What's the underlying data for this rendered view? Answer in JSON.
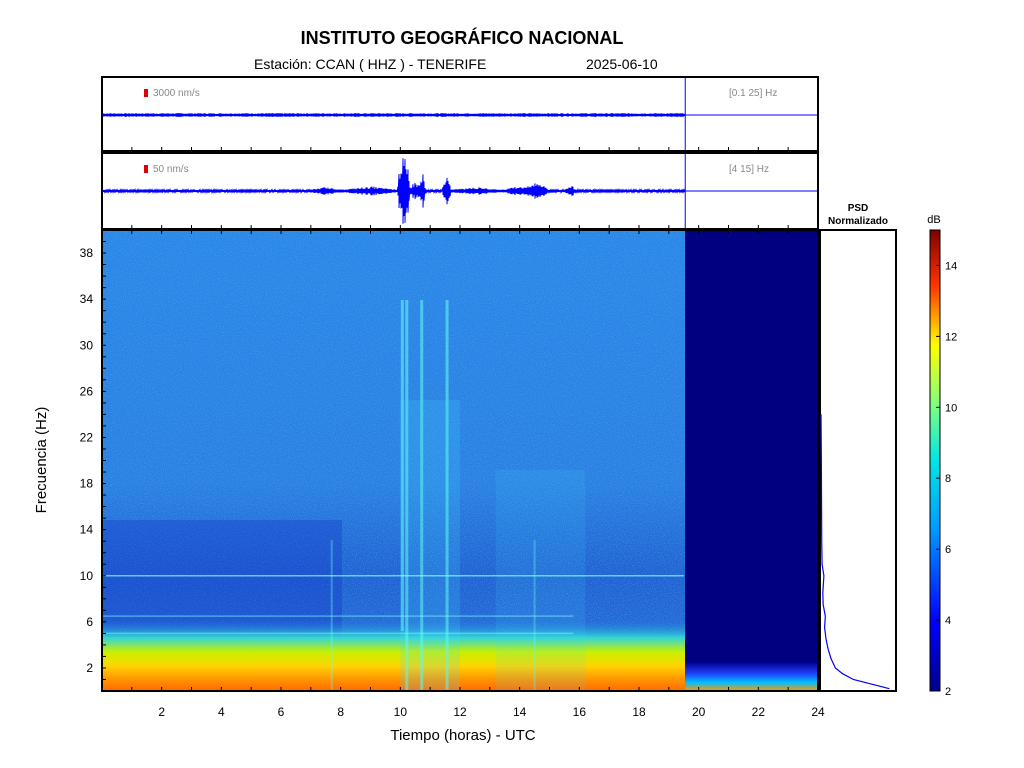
{
  "header": {
    "title": "INSTITUTO GEOGRÁFICO NACIONAL",
    "station": "Estación:  CCAN ( HHZ ) - TENERIFE",
    "date": "2025-06-10"
  },
  "chart_data": [
    {
      "type": "line",
      "name": "seismogram-broadband",
      "scale_label": "3000 nm/s",
      "band_label": "[0.1 25] Hz",
      "x_range_hours": [
        0,
        24
      ],
      "data_end_hour": 19.55
    },
    {
      "type": "line",
      "name": "seismogram-filtered",
      "scale_label": "50 nm/s",
      "band_label": "[4 15] Hz",
      "x_range_hours": [
        0,
        24
      ],
      "data_end_hour": 19.55,
      "events_hours": [
        10.05,
        10.2,
        10.7,
        11.55,
        14.5,
        15.7
      ]
    },
    {
      "type": "heatmap",
      "name": "spectrogram",
      "xlabel": "Tiempo (horas) - UTC",
      "ylabel": "Frecuencia  (Hz)",
      "xlim": [
        0,
        24
      ],
      "ylim": [
        0,
        40
      ],
      "x_ticks": [
        2,
        4,
        6,
        8,
        10,
        12,
        14,
        16,
        18,
        20,
        22,
        24
      ],
      "y_ticks": [
        2,
        6,
        10,
        14,
        18,
        22,
        26,
        30,
        34,
        38
      ],
      "data_end_hour": 19.55,
      "vertical_lines_hours": [
        7.7,
        10.05,
        10.2,
        10.7,
        11.55,
        14.5
      ],
      "horizontal_lines_hz": [
        10,
        6.5,
        5
      ]
    },
    {
      "type": "line",
      "name": "psd",
      "title": "PSD\nNormalizado",
      "ylim": [
        0,
        40
      ],
      "points": [
        [
          0.95,
          0.2
        ],
        [
          0.7,
          0.6
        ],
        [
          0.45,
          1.0
        ],
        [
          0.3,
          1.5
        ],
        [
          0.2,
          2.0
        ],
        [
          0.14,
          2.8
        ],
        [
          0.1,
          3.6
        ],
        [
          0.07,
          4.5
        ],
        [
          0.05,
          5.5
        ],
        [
          0.06,
          6.5
        ],
        [
          0.03,
          7.5
        ],
        [
          0.025,
          8.5
        ],
        [
          0.04,
          10.0
        ],
        [
          0.015,
          11
        ],
        [
          0.01,
          13
        ],
        [
          0.008,
          16
        ],
        [
          0.005,
          20
        ],
        [
          0.0,
          24
        ]
      ]
    }
  ],
  "colorbar": {
    "label": "dB",
    "range": [
      2,
      15
    ],
    "ticks": [
      2,
      4,
      6,
      8,
      10,
      12,
      14
    ]
  }
}
